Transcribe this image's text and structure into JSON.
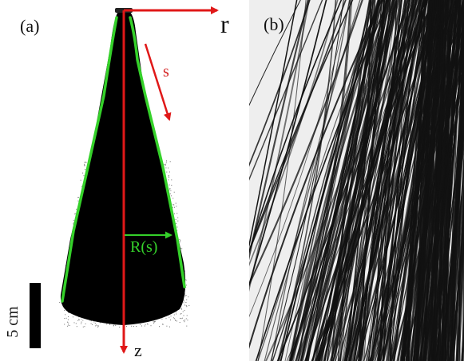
{
  "panel_a": {
    "label": "(a)",
    "axis_r": "r",
    "axis_s": "s",
    "axis_z": "z",
    "radius_label": "R(s)",
    "scale_bar": "5 cm"
  },
  "panel_b": {
    "label": "(b)"
  },
  "colors": {
    "axes": "#e01818",
    "outline": "#35d12a",
    "cone": "#000000",
    "fibers": "#111111",
    "panel_b_bg": "#eeeeee"
  }
}
